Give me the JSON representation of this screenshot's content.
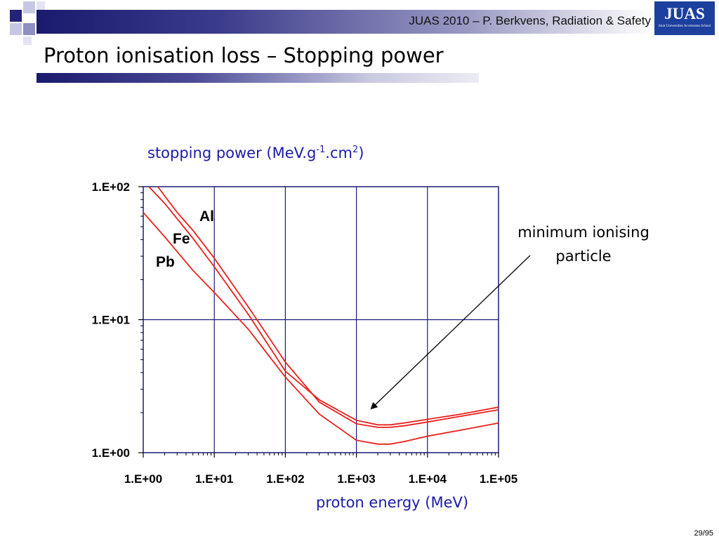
{
  "header": {
    "text": "JUAS 2010 – P. Berkvens, Radiation & Safety",
    "logo_text": "JUAS",
    "logo_subtext": "Joint Universities Accelerator School"
  },
  "slide_title": "Proton ionisation loss – Stopping power",
  "page_number": "29/95",
  "callout": {
    "line1": "minimum ionising",
    "line2": "particle"
  },
  "chart_data": {
    "type": "line",
    "title": "",
    "ylabel": {
      "text_pre": "stopping power (MeV.g",
      "sup1": "-1",
      "text_mid": ".cm",
      "sup2": "2",
      "text_post": ")"
    },
    "xlabel": "proton energy (MeV)",
    "xscale": "log",
    "yscale": "log",
    "xlim": [
      1,
      100000
    ],
    "ylim": [
      1,
      100
    ],
    "x_tick_labels": [
      "1.E+00",
      "1.E+01",
      "1.E+02",
      "1.E+03",
      "1.E+04",
      "1.E+05"
    ],
    "y_tick_labels": [
      "1.E+00",
      "1.E+01",
      "1.E+02"
    ],
    "grid": true,
    "colors": {
      "line": "#e8201c",
      "grid": "#1a1a7a",
      "axis_title": "#1c1ca8"
    },
    "series": [
      {
        "name": "Al",
        "points": [
          [
            1.2,
            100
          ],
          [
            2,
            75
          ],
          [
            5,
            41
          ],
          [
            10,
            25
          ],
          [
            30,
            11
          ],
          [
            100,
            4.1
          ],
          [
            300,
            2.5
          ],
          [
            1000,
            1.75
          ],
          [
            2000,
            1.62
          ],
          [
            3000,
            1.62
          ],
          [
            5000,
            1.68
          ],
          [
            10000,
            1.78
          ],
          [
            30000,
            1.95
          ],
          [
            100000,
            2.2
          ]
        ]
      },
      {
        "name": "Fe",
        "points": [
          [
            1.6,
            100
          ],
          [
            3,
            64
          ],
          [
            5,
            47
          ],
          [
            10,
            29
          ],
          [
            30,
            12.5
          ],
          [
            100,
            4.8
          ],
          [
            300,
            2.4
          ],
          [
            1000,
            1.65
          ],
          [
            2000,
            1.55
          ],
          [
            3000,
            1.55
          ],
          [
            5000,
            1.6
          ],
          [
            10000,
            1.7
          ],
          [
            30000,
            1.88
          ],
          [
            100000,
            2.1
          ]
        ]
      },
      {
        "name": "Pb",
        "points": [
          [
            1,
            64
          ],
          [
            2,
            42
          ],
          [
            5,
            23.5
          ],
          [
            10,
            16
          ],
          [
            30,
            8.5
          ],
          [
            100,
            3.7
          ],
          [
            300,
            1.95
          ],
          [
            1000,
            1.24
          ],
          [
            2000,
            1.16
          ],
          [
            3000,
            1.16
          ],
          [
            5000,
            1.22
          ],
          [
            10000,
            1.33
          ],
          [
            30000,
            1.48
          ],
          [
            100000,
            1.67
          ]
        ]
      }
    ]
  }
}
